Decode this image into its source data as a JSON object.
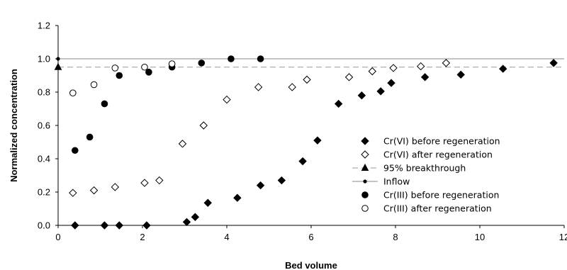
{
  "chart_data": {
    "type": "scatter",
    "title": "",
    "xlabel": "Bed volume",
    "ylabel": "Normalized concentration",
    "xlim": [
      0,
      12
    ],
    "ylim": [
      0,
      1.2
    ],
    "x_ticks": [
      "0",
      "2",
      "4",
      "6",
      "8",
      "10",
      "12"
    ],
    "y_ticks": [
      "0.0",
      "0.2",
      "0.4",
      "0.6",
      "0.8",
      "1.0",
      "1.2"
    ],
    "grid": "horizontal gridline at 1.0 only",
    "legend_position": "lower-right",
    "series": [
      {
        "name": "Cr(VI) before regeneration",
        "marker": "filled-diamond",
        "color": "#000000",
        "points": [
          [
            0.4,
            0.0
          ],
          [
            1.1,
            0.0
          ],
          [
            1.45,
            0.0
          ],
          [
            2.1,
            0.0
          ],
          [
            3.05,
            0.02
          ],
          [
            3.25,
            0.05
          ],
          [
            3.55,
            0.135
          ],
          [
            4.25,
            0.165
          ],
          [
            4.8,
            0.24
          ],
          [
            5.3,
            0.27
          ],
          [
            5.8,
            0.385
          ],
          [
            6.15,
            0.51
          ],
          [
            6.65,
            0.73
          ],
          [
            7.2,
            0.78
          ],
          [
            7.65,
            0.805
          ],
          [
            7.9,
            0.855
          ],
          [
            8.7,
            0.89
          ],
          [
            9.55,
            0.905
          ],
          [
            10.55,
            0.94
          ],
          [
            11.75,
            0.975
          ]
        ]
      },
      {
        "name": "Cr(VI) after regeneration",
        "marker": "open-diamond",
        "color": "#000000",
        "points": [
          [
            0.35,
            0.195
          ],
          [
            0.85,
            0.21
          ],
          [
            1.35,
            0.23
          ],
          [
            2.05,
            0.255
          ],
          [
            2.4,
            0.27
          ],
          [
            2.95,
            0.49
          ],
          [
            3.45,
            0.6
          ],
          [
            4.0,
            0.755
          ],
          [
            4.75,
            0.83
          ],
          [
            5.55,
            0.83
          ],
          [
            5.9,
            0.875
          ],
          [
            6.9,
            0.89
          ],
          [
            7.45,
            0.925
          ],
          [
            7.95,
            0.945
          ],
          [
            8.6,
            0.955
          ],
          [
            9.2,
            0.975
          ]
        ]
      },
      {
        "name": "95% breakthrough",
        "marker": "filled-triangle",
        "color": "#999999",
        "line": "dashed",
        "points": [
          [
            0.0,
            0.95
          ],
          [
            12.0,
            0.95
          ]
        ]
      },
      {
        "name": "Inflow",
        "marker": "small-dot",
        "color": "#888888",
        "line": "solid",
        "points": [
          [
            0.0,
            1.0
          ],
          [
            12.0,
            1.0
          ]
        ]
      },
      {
        "name": "Cr(III) before regeneration",
        "marker": "filled-circle",
        "color": "#000000",
        "points": [
          [
            0.4,
            0.45
          ],
          [
            0.75,
            0.53
          ],
          [
            1.1,
            0.73
          ],
          [
            1.45,
            0.9
          ],
          [
            2.15,
            0.92
          ],
          [
            2.7,
            0.95
          ],
          [
            3.4,
            0.975
          ],
          [
            4.1,
            1.0
          ],
          [
            4.8,
            1.0
          ]
        ]
      },
      {
        "name": "Cr(III) after regeneration",
        "marker": "open-circle",
        "color": "#000000",
        "points": [
          [
            0.35,
            0.795
          ],
          [
            0.85,
            0.845
          ],
          [
            1.35,
            0.945
          ],
          [
            2.05,
            0.95
          ],
          [
            2.7,
            0.97
          ]
        ]
      }
    ]
  }
}
